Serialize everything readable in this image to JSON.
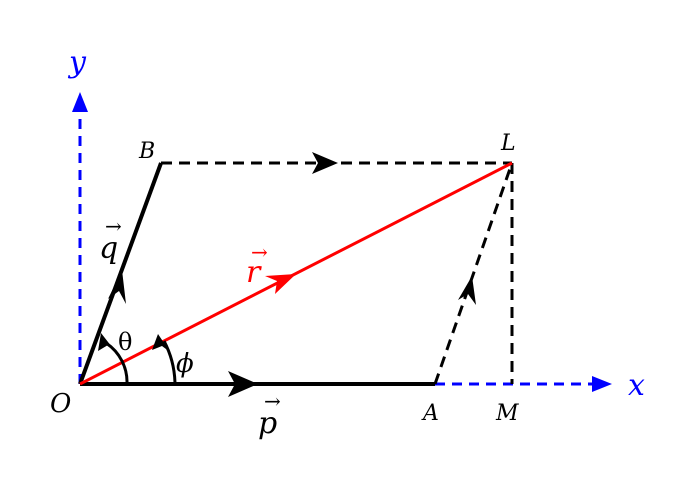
{
  "diagram": {
    "axes": {
      "x_label": "x",
      "y_label": "y",
      "color": "#0000ff"
    },
    "points": {
      "O": "O",
      "A": "A",
      "B": "B",
      "L": "L",
      "M": "M"
    },
    "vectors": {
      "p": {
        "symbol": "p",
        "arrow": "→",
        "color": "#000000"
      },
      "q": {
        "symbol": "q",
        "arrow": "→",
        "color": "#000000"
      },
      "r": {
        "symbol": "r",
        "arrow": "→",
        "color": "#ff0000"
      }
    },
    "angles": {
      "theta": "θ",
      "phi": "ϕ"
    },
    "colors": {
      "black": "#000000",
      "red": "#ff0000",
      "blue": "#0000ff"
    }
  }
}
